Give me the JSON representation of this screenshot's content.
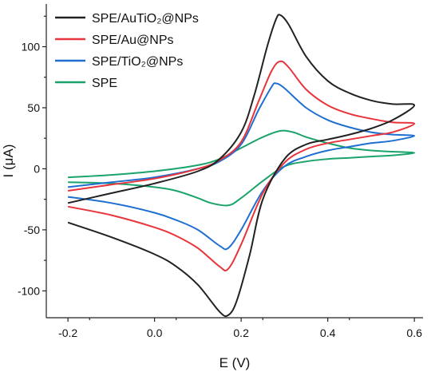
{
  "chart_data": {
    "type": "line",
    "xlabel": "E (V)",
    "ylabel": "I (μA)",
    "xlim": [
      -0.25,
      0.62
    ],
    "ylim": [
      -122,
      135
    ],
    "x_ticks": [
      "-0.2",
      "0.0",
      "0.2",
      "0.4",
      "0.6"
    ],
    "y_ticks": [
      "-100",
      "-50",
      "0",
      "50",
      "100"
    ],
    "grid": false,
    "legend_position": "top-left",
    "series": [
      {
        "name": "SPE/AuTiO₂@NPs",
        "color": "#222222",
        "forward": [
          [
            -0.2,
            -28
          ],
          [
            -0.1,
            -20
          ],
          [
            0.0,
            -12
          ],
          [
            0.1,
            -2
          ],
          [
            0.15,
            8
          ],
          [
            0.2,
            30
          ],
          [
            0.23,
            60
          ],
          [
            0.26,
            100
          ],
          [
            0.28,
            122
          ],
          [
            0.29,
            126
          ],
          [
            0.31,
            118
          ],
          [
            0.35,
            92
          ],
          [
            0.4,
            72
          ],
          [
            0.45,
            62
          ],
          [
            0.5,
            56
          ],
          [
            0.55,
            53
          ],
          [
            0.6,
            52
          ]
        ],
        "reverse": [
          [
            0.6,
            50
          ],
          [
            0.55,
            40
          ],
          [
            0.5,
            33
          ],
          [
            0.45,
            28
          ],
          [
            0.4,
            24
          ],
          [
            0.35,
            20
          ],
          [
            0.3,
            8
          ],
          [
            0.25,
            -25
          ],
          [
            0.22,
            -70
          ],
          [
            0.19,
            -108
          ],
          [
            0.17,
            -120
          ],
          [
            0.15,
            -117
          ],
          [
            0.1,
            -95
          ],
          [
            0.05,
            -80
          ],
          [
            0.0,
            -70
          ],
          [
            -0.1,
            -56
          ],
          [
            -0.2,
            -44
          ]
        ]
      },
      {
        "name": "SPE/Au@NPs",
        "color": "#e8343b",
        "forward": [
          [
            -0.2,
            -18
          ],
          [
            -0.1,
            -13
          ],
          [
            0.0,
            -8
          ],
          [
            0.1,
            0
          ],
          [
            0.15,
            7
          ],
          [
            0.2,
            22
          ],
          [
            0.24,
            55
          ],
          [
            0.27,
            80
          ],
          [
            0.29,
            88
          ],
          [
            0.31,
            83
          ],
          [
            0.35,
            65
          ],
          [
            0.4,
            52
          ],
          [
            0.45,
            45
          ],
          [
            0.5,
            41
          ],
          [
            0.55,
            38
          ],
          [
            0.6,
            37
          ]
        ],
        "reverse": [
          [
            0.6,
            35
          ],
          [
            0.55,
            30
          ],
          [
            0.5,
            27
          ],
          [
            0.45,
            24
          ],
          [
            0.4,
            21
          ],
          [
            0.35,
            16
          ],
          [
            0.3,
            5
          ],
          [
            0.25,
            -20
          ],
          [
            0.2,
            -62
          ],
          [
            0.17,
            -82
          ],
          [
            0.15,
            -80
          ],
          [
            0.1,
            -65
          ],
          [
            0.05,
            -55
          ],
          [
            0.0,
            -48
          ],
          [
            -0.1,
            -38
          ],
          [
            -0.2,
            -31
          ]
        ]
      },
      {
        "name": "SPE/TiO₂@NPs",
        "color": "#1f6fd1",
        "forward": [
          [
            -0.2,
            -15
          ],
          [
            -0.1,
            -11
          ],
          [
            0.0,
            -7
          ],
          [
            0.1,
            0
          ],
          [
            0.15,
            6
          ],
          [
            0.2,
            20
          ],
          [
            0.24,
            48
          ],
          [
            0.27,
            67
          ],
          [
            0.28,
            70
          ],
          [
            0.3,
            66
          ],
          [
            0.35,
            50
          ],
          [
            0.4,
            40
          ],
          [
            0.45,
            34
          ],
          [
            0.5,
            30
          ],
          [
            0.55,
            28
          ],
          [
            0.6,
            27
          ]
        ],
        "reverse": [
          [
            0.6,
            26
          ],
          [
            0.55,
            23
          ],
          [
            0.5,
            21
          ],
          [
            0.45,
            18
          ],
          [
            0.4,
            15
          ],
          [
            0.35,
            10
          ],
          [
            0.3,
            2
          ],
          [
            0.25,
            -18
          ],
          [
            0.2,
            -50
          ],
          [
            0.17,
            -65
          ],
          [
            0.15,
            -63
          ],
          [
            0.1,
            -50
          ],
          [
            0.05,
            -42
          ],
          [
            0.0,
            -36
          ],
          [
            -0.1,
            -28
          ],
          [
            -0.2,
            -23
          ]
        ]
      },
      {
        "name": "SPE",
        "color": "#1aa36a",
        "forward": [
          [
            -0.2,
            -7
          ],
          [
            -0.1,
            -5
          ],
          [
            0.0,
            -2
          ],
          [
            0.1,
            3
          ],
          [
            0.15,
            8
          ],
          [
            0.2,
            17
          ],
          [
            0.25,
            26
          ],
          [
            0.29,
            31
          ],
          [
            0.32,
            30
          ],
          [
            0.35,
            26
          ],
          [
            0.4,
            21
          ],
          [
            0.45,
            17
          ],
          [
            0.5,
            15
          ],
          [
            0.55,
            14
          ],
          [
            0.6,
            13
          ]
        ],
        "reverse": [
          [
            0.6,
            12
          ],
          [
            0.55,
            11
          ],
          [
            0.5,
            10
          ],
          [
            0.45,
            9
          ],
          [
            0.4,
            8
          ],
          [
            0.35,
            6
          ],
          [
            0.3,
            2
          ],
          [
            0.25,
            -10
          ],
          [
            0.2,
            -24
          ],
          [
            0.17,
            -30
          ],
          [
            0.13,
            -28
          ],
          [
            0.1,
            -24
          ],
          [
            0.05,
            -18
          ],
          [
            0.0,
            -15
          ],
          [
            -0.1,
            -12
          ],
          [
            -0.2,
            -11
          ]
        ]
      }
    ]
  }
}
